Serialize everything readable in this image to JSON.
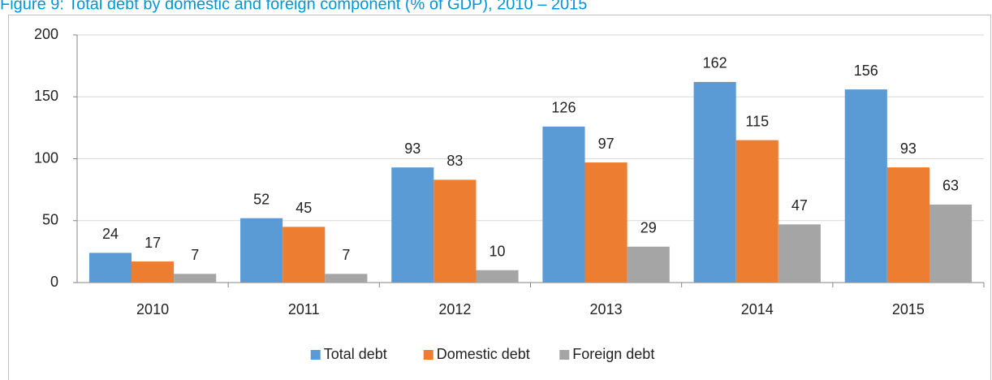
{
  "chart_data": {
    "type": "bar",
    "title": "Figure 9: Total debt by domestic and foreign component (% of GDP), 2010 – 2015",
    "categories": [
      "2010",
      "2011",
      "2012",
      "2013",
      "2014",
      "2015"
    ],
    "series": [
      {
        "name": "Total debt",
        "color": "#5b9bd5",
        "values": [
          24,
          52,
          93,
          126,
          162,
          156
        ]
      },
      {
        "name": "Domestic debt",
        "color": "#ed7d31",
        "values": [
          17,
          45,
          83,
          97,
          115,
          93
        ]
      },
      {
        "name": "Foreign debt",
        "color": "#a5a5a5",
        "values": [
          7,
          7,
          10,
          29,
          47,
          63
        ]
      }
    ],
    "ylim": [
      0,
      200
    ],
    "yticks": [
      0,
      50,
      100,
      150,
      200
    ],
    "grid": true,
    "legend": "bottom"
  }
}
